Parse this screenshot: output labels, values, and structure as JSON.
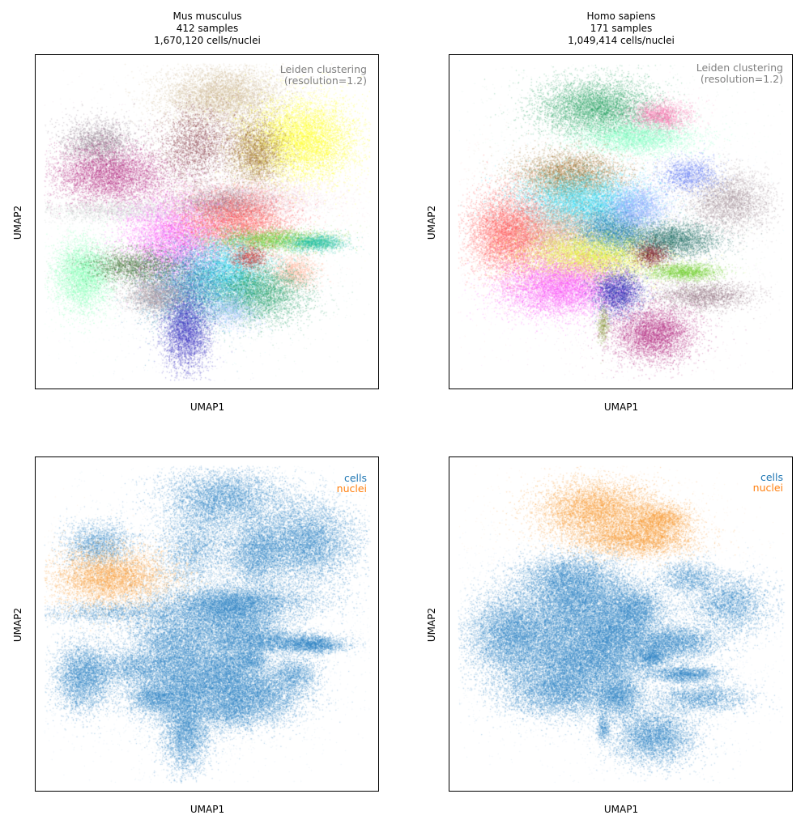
{
  "panels": [
    {
      "id": "mouse",
      "title": [
        "Mus musculus",
        "412 samples",
        "1,670,120 cells/nuclei"
      ],
      "xlabel": "UMAP1",
      "ylabel": "UMAP2",
      "annotation": [
        "Leiden clustering",
        "(resolution=1.2)"
      ]
    },
    {
      "id": "human",
      "title": [
        "Homo sapiens",
        "171 samples",
        "1,049,414 cells/nuclei"
      ],
      "xlabel": "UMAP1",
      "ylabel": "UMAP2",
      "annotation": [
        "Leiden clustering",
        "(resolution=1.2)"
      ]
    },
    {
      "id": "mouse-mod",
      "xlabel": "UMAP1",
      "ylabel": "UMAP2",
      "legend": [
        {
          "label": "cells",
          "color": "#1f77b4"
        },
        {
          "label": "nuclei",
          "color": "#ff7f0e"
        }
      ]
    },
    {
      "id": "human-mod",
      "xlabel": "UMAP1",
      "ylabel": "UMAP2",
      "legend": [
        {
          "label": "cells",
          "color": "#1f77b4"
        },
        {
          "label": "nuclei",
          "color": "#ff7f0e"
        }
      ]
    }
  ],
  "chart_data": [
    {
      "type": "scatter",
      "title": "Mus musculus",
      "xlabel": "UMAP1",
      "ylabel": "UMAP2",
      "color_by": "leiden",
      "clusters": [
        {
          "x": 0.55,
          "y": 0.93,
          "sx": 0.1,
          "sy": 0.05,
          "color": "#c8b28a",
          "weight": 1
        },
        {
          "x": 0.82,
          "y": 0.78,
          "sx": 0.09,
          "sy": 0.07,
          "color": "#ffff1a",
          "weight": 1.4
        },
        {
          "x": 0.66,
          "y": 0.74,
          "sx": 0.05,
          "sy": 0.06,
          "color": "#9b6a25",
          "weight": 0.6
        },
        {
          "x": 0.46,
          "y": 0.76,
          "sx": 0.06,
          "sy": 0.07,
          "color": "#7a2a36",
          "weight": 0.5,
          "angle": -0.7
        },
        {
          "x": 0.14,
          "y": 0.77,
          "sx": 0.06,
          "sy": 0.04,
          "color": "#7f6b7a",
          "weight": 0.4
        },
        {
          "x": 0.18,
          "y": 0.66,
          "sx": 0.1,
          "sy": 0.05,
          "color": "#b0237a",
          "weight": 1
        },
        {
          "x": 0.2,
          "y": 0.54,
          "sx": 0.14,
          "sy": 0.02,
          "color": "#b7c3bf",
          "weight": 0.3
        },
        {
          "x": 0.62,
          "y": 0.58,
          "sx": 0.14,
          "sy": 0.03,
          "color": "#f2c8d6",
          "weight": 0.7
        },
        {
          "x": 0.55,
          "y": 0.56,
          "sx": 0.08,
          "sy": 0.03,
          "color": "#8b6b78",
          "weight": 0.4
        },
        {
          "x": 0.39,
          "y": 0.44,
          "sx": 0.08,
          "sy": 0.07,
          "color": "#f94bf5",
          "weight": 1.1
        },
        {
          "x": 0.6,
          "y": 0.5,
          "sx": 0.09,
          "sy": 0.05,
          "color": "#ff5454",
          "weight": 1
        },
        {
          "x": 0.71,
          "y": 0.44,
          "sx": 0.1,
          "sy": 0.02,
          "color": "#6bcf2f",
          "weight": 0.5
        },
        {
          "x": 0.86,
          "y": 0.43,
          "sx": 0.05,
          "sy": 0.015,
          "color": "#22bfa7",
          "weight": 0.3
        },
        {
          "x": 0.79,
          "y": 0.33,
          "sx": 0.04,
          "sy": 0.03,
          "color": "#ffab8f",
          "weight": 0.25
        },
        {
          "x": 0.56,
          "y": 0.33,
          "sx": 0.07,
          "sy": 0.06,
          "color": "#27d7f0",
          "weight": 0.9
        },
        {
          "x": 0.67,
          "y": 0.26,
          "sx": 0.08,
          "sy": 0.05,
          "color": "#1e9b61",
          "weight": 0.9
        },
        {
          "x": 0.44,
          "y": 0.28,
          "sx": 0.08,
          "sy": 0.07,
          "color": "#1b7fb0",
          "weight": 1
        },
        {
          "x": 0.43,
          "y": 0.13,
          "sx": 0.04,
          "sy": 0.07,
          "color": "#2b23b9",
          "weight": 0.7
        },
        {
          "x": 0.09,
          "y": 0.32,
          "sx": 0.05,
          "sy": 0.06,
          "color": "#7fffb3",
          "weight": 0.8
        },
        {
          "x": 0.26,
          "y": 0.35,
          "sx": 0.08,
          "sy": 0.03,
          "color": "#275f1a",
          "weight": 0.4
        },
        {
          "x": 0.33,
          "y": 0.25,
          "sx": 0.05,
          "sy": 0.03,
          "color": "#a08f98",
          "weight": 0.4
        },
        {
          "x": 0.64,
          "y": 0.38,
          "sx": 0.03,
          "sy": 0.02,
          "color": "#c82c2c",
          "weight": 0.15
        },
        {
          "x": 0.58,
          "y": 0.2,
          "sx": 0.05,
          "sy": 0.03,
          "color": "#a9c4ff",
          "weight": 0.25
        }
      ]
    },
    {
      "type": "scatter",
      "title": "Homo sapiens",
      "xlabel": "UMAP1",
      "ylabel": "UMAP2",
      "color_by": "leiden",
      "clusters": [
        {
          "x": 0.42,
          "y": 0.89,
          "sx": 0.1,
          "sy": 0.05,
          "color": "#1f9e5c",
          "weight": 1.1
        },
        {
          "x": 0.63,
          "y": 0.86,
          "sx": 0.05,
          "sy": 0.025,
          "color": "#f36aa6",
          "weight": 0.35
        },
        {
          "x": 0.55,
          "y": 0.79,
          "sx": 0.1,
          "sy": 0.03,
          "color": "#7cffc1",
          "weight": 0.7
        },
        {
          "x": 0.33,
          "y": 0.66,
          "sx": 0.09,
          "sy": 0.04,
          "color": "#9b6a25",
          "weight": 0.8
        },
        {
          "x": 0.37,
          "y": 0.57,
          "sx": 0.11,
          "sy": 0.05,
          "color": "#27d7f0",
          "weight": 1.3
        },
        {
          "x": 0.13,
          "y": 0.46,
          "sx": 0.07,
          "sy": 0.07,
          "color": "#ff5454",
          "weight": 1.3
        },
        {
          "x": 0.3,
          "y": 0.47,
          "sx": 0.07,
          "sy": 0.05,
          "color": "#d59a7e",
          "weight": 0.6
        },
        {
          "x": 0.47,
          "y": 0.47,
          "sx": 0.06,
          "sy": 0.04,
          "color": "#1b7fb0",
          "weight": 0.7
        },
        {
          "x": 0.55,
          "y": 0.55,
          "sx": 0.05,
          "sy": 0.04,
          "color": "#8da5ff",
          "weight": 0.5
        },
        {
          "x": 0.4,
          "y": 0.38,
          "sx": 0.11,
          "sy": 0.04,
          "color": "#e4f02e",
          "weight": 1.2
        },
        {
          "x": 0.3,
          "y": 0.28,
          "sx": 0.1,
          "sy": 0.05,
          "color": "#f94bf5",
          "weight": 1.3
        },
        {
          "x": 0.49,
          "y": 0.26,
          "sx": 0.04,
          "sy": 0.04,
          "color": "#2020b0",
          "weight": 0.5
        },
        {
          "x": 0.67,
          "y": 0.44,
          "sx": 0.08,
          "sy": 0.03,
          "color": "#1f6e64",
          "weight": 0.7
        },
        {
          "x": 0.86,
          "y": 0.57,
          "sx": 0.07,
          "sy": 0.05,
          "color": "#9a8890",
          "weight": 0.6
        },
        {
          "x": 0.72,
          "y": 0.66,
          "sx": 0.05,
          "sy": 0.03,
          "color": "#4a67f0",
          "weight": 0.25
        },
        {
          "x": 0.71,
          "y": 0.33,
          "sx": 0.06,
          "sy": 0.015,
          "color": "#6fcf2f",
          "weight": 0.35
        },
        {
          "x": 0.77,
          "y": 0.25,
          "sx": 0.08,
          "sy": 0.025,
          "color": "#8a6a78",
          "weight": 0.4
        },
        {
          "x": 0.6,
          "y": 0.39,
          "sx": 0.03,
          "sy": 0.02,
          "color": "#7c1e2a",
          "weight": 0.2
        },
        {
          "x": 0.61,
          "y": 0.12,
          "sx": 0.07,
          "sy": 0.05,
          "color": "#b0237a",
          "weight": 0.9
        },
        {
          "x": 0.44,
          "y": 0.15,
          "sx": 0.01,
          "sy": 0.03,
          "color": "#889938",
          "weight": 0.08
        }
      ]
    },
    {
      "type": "scatter",
      "title": "",
      "xlabel": "UMAP1",
      "ylabel": "UMAP2",
      "color_by": "modality",
      "legend": [
        "cells",
        "nuclei"
      ],
      "base": 0,
      "highlight_clusters": [
        5
      ],
      "highlight_color": "#f7942a",
      "base_color": "#2a82c2"
    },
    {
      "type": "scatter",
      "title": "",
      "xlabel": "UMAP1",
      "ylabel": "UMAP2",
      "color_by": "modality",
      "legend": [
        "cells",
        "nuclei"
      ],
      "base": 1,
      "highlight_clusters": [
        0,
        1,
        2
      ],
      "highlight_color": "#f7942a",
      "base_color": "#2a82c2"
    }
  ]
}
